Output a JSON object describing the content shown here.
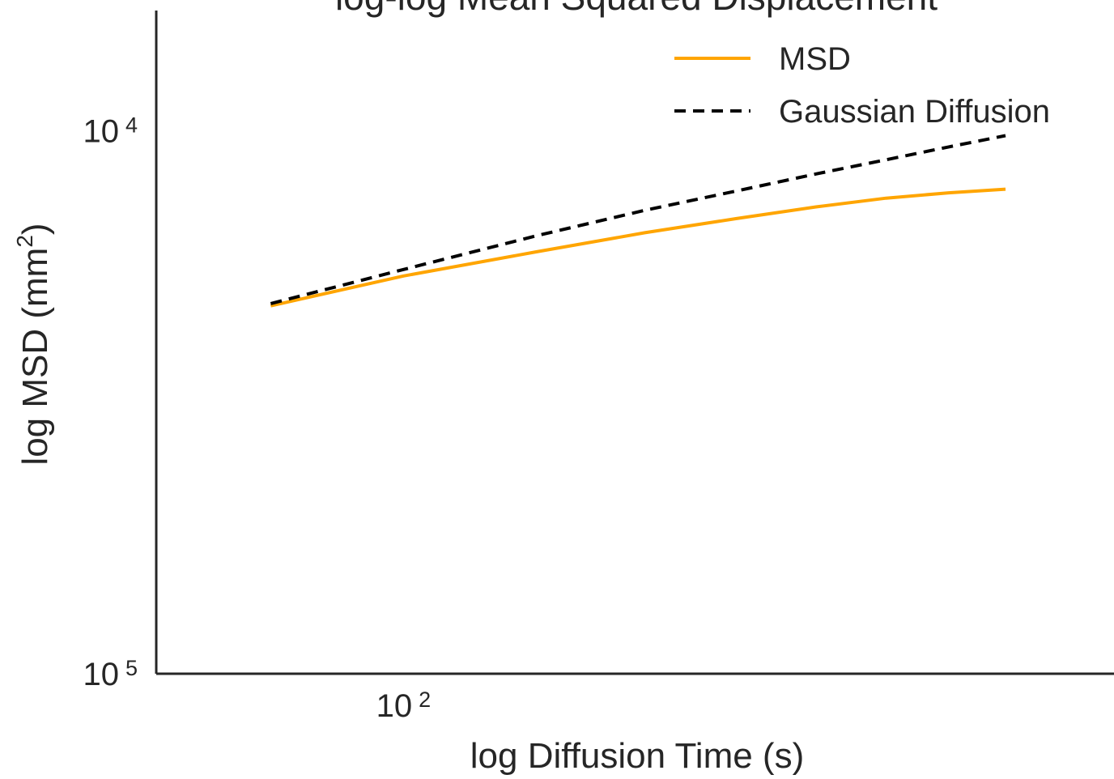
{
  "chart_data": {
    "type": "line",
    "title": "log-log Mean Squared Displacement",
    "xlabel": "log Diffusion Time (s)",
    "ylabel": "log MSD (mm",
    "ylabel_sup": "2",
    "ylabel_close": ")",
    "xscale": "log",
    "yscale": "log",
    "xlim": [
      66,
      330
    ],
    "ylim": [
      100000,
      6000
    ],
    "y_inverted": true,
    "x_ticks": [
      {
        "value": 100,
        "base": "10",
        "exp": "2"
      }
    ],
    "y_ticks": [
      {
        "value": 10000,
        "base": "10",
        "exp": "4"
      },
      {
        "value": 100000,
        "base": "10",
        "exp": "5"
      }
    ],
    "grid": false,
    "legend_position": "upper-right",
    "series": [
      {
        "name": "MSD",
        "color": "#FFA500",
        "style": "solid",
        "x": [
          80,
          100,
          125,
          150,
          175,
          200,
          225,
          250,
          275
        ],
        "y": [
          21000,
          18500,
          16700,
          15400,
          14500,
          13800,
          13300,
          13000,
          12800
        ]
      },
      {
        "name": "Gaussian Diffusion",
        "color": "#000000",
        "style": "dashed",
        "x": [
          80,
          100,
          125,
          150,
          175,
          200,
          225,
          250,
          275
        ],
        "y": [
          20800,
          18000,
          15600,
          14000,
          12900,
          12000,
          11300,
          10700,
          10200
        ]
      }
    ]
  }
}
